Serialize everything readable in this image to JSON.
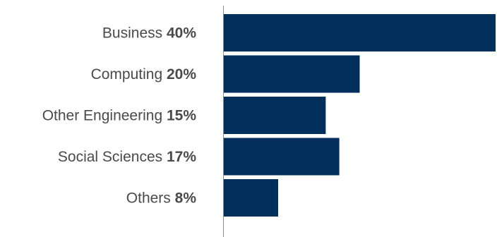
{
  "chart_data": {
    "type": "bar",
    "orientation": "horizontal",
    "categories": [
      "Business",
      "Computing",
      "Other Engineering",
      "Social Sciences",
      "Others"
    ],
    "values": [
      40,
      20,
      15,
      17,
      8
    ],
    "value_labels": [
      "40%",
      "20%",
      "15%",
      "17%",
      "8%"
    ],
    "title": "",
    "xlabel": "",
    "ylabel": "",
    "xlim": [
      0,
      40
    ],
    "grid": false,
    "legend": "none",
    "colors": {
      "bar": "#002f5c",
      "axis": "#8a8a8a",
      "text": "#4a4a4a"
    }
  }
}
